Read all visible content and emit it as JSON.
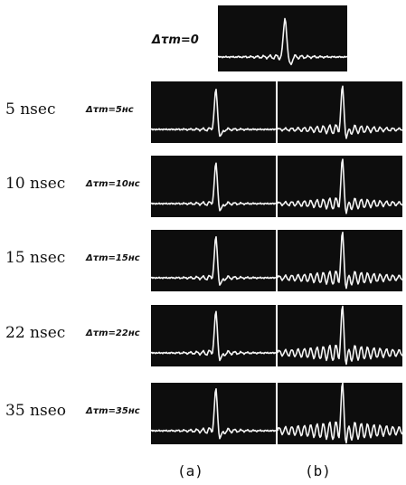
{
  "top_label": "Δτm=0",
  "rows": [
    {
      "label": "5 nsec",
      "annotation": "Δτm=5нс"
    },
    {
      "label": "10 nsec",
      "annotation": "Δτm=10нс"
    },
    {
      "label": "15 nsec",
      "annotation": "Δτm=15нс"
    },
    {
      "label": "22 nsec",
      "annotation": "Δτm=22нс"
    },
    {
      "label": "35 nseo",
      "annotation": "Δτm=35нс"
    }
  ],
  "columns": [
    "(a)",
    "(b)"
  ]
}
